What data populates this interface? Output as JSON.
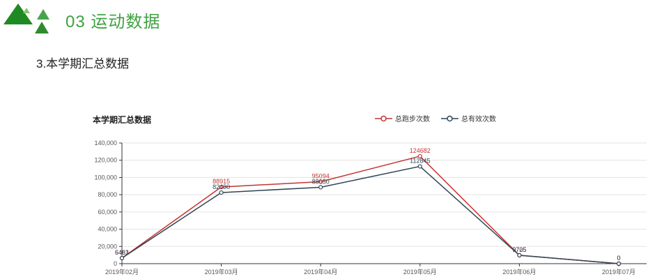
{
  "page": {
    "header_title": "03 运动数据",
    "subtitle": "3.本学期汇总数据"
  },
  "colors": {
    "brand_green": "#3fa23f",
    "logo_dark_green": "#1f8a24",
    "logo_mid_green": "#48a348",
    "logo_low_green": "#2e8b2e",
    "logo_light_green": "#8cc56b",
    "series_run_red": "#c23531",
    "series_valid_dark": "#2f4554",
    "grid_line": "#e3e3e3",
    "axis_line": "#333333",
    "tick_label": "#555555"
  },
  "chart_data": {
    "type": "line",
    "title": "本学期汇总数据",
    "categories": [
      "2019年02月",
      "2019年03月",
      "2019年04月",
      "2019年05月",
      "2019年06月",
      "2019年07月"
    ],
    "series": [
      {
        "name": "总跑步次数",
        "color": "#c23531",
        "values": [
          6483,
          88915,
          95094,
          124682,
          9725,
          0
        ]
      },
      {
        "name": "总有效次数",
        "color": "#2f4554",
        "values": [
          6461,
          82480,
          88650,
          112845,
          9705,
          0
        ]
      }
    ],
    "ylim": [
      0,
      140000
    ],
    "ytick_step": 20000,
    "ytick_labels": [
      "0",
      "20,000",
      "40,000",
      "60,000",
      "80,000",
      "100,000",
      "120,000",
      "140,000"
    ],
    "grid": true,
    "legend_position": "top-center",
    "data_labels": true
  }
}
